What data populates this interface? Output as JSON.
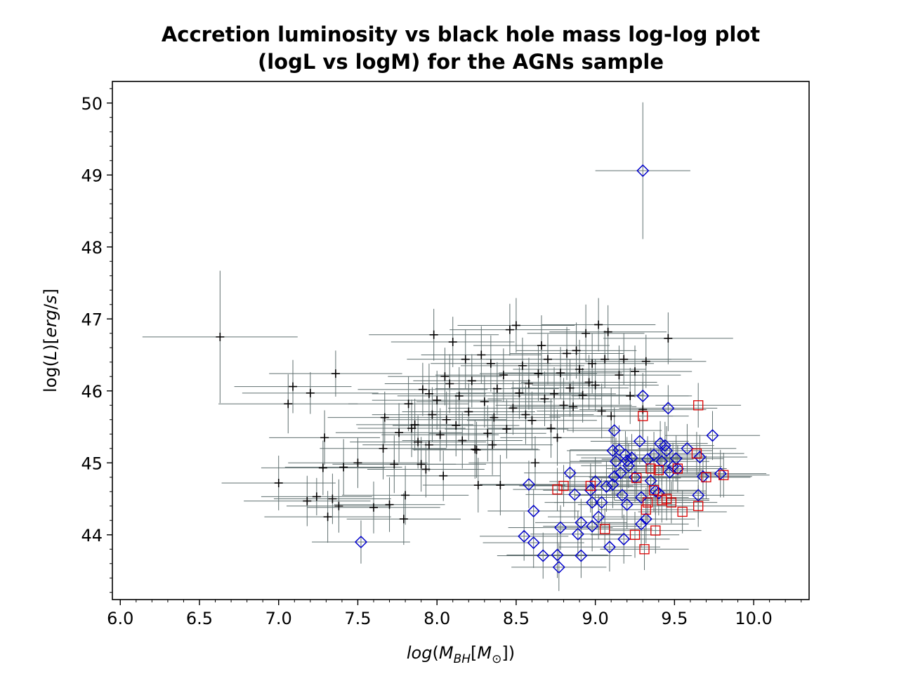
{
  "chart_data": {
    "type": "scatter",
    "title": [
      "Accretion luminosity vs black hole mass log-log plot",
      "(logL vs logM) for the AGNs sample"
    ],
    "xlabel": "log(M_BH[M_⊙])",
    "ylabel": "log(L)[erg/s]",
    "xlim": [
      5.95,
      10.35
    ],
    "ylim": [
      43.1,
      50.3
    ],
    "x_ticks": [
      "6.0",
      "6.5",
      "7.0",
      "7.5",
      "8.0",
      "8.5",
      "9.0",
      "9.5",
      "10.0"
    ],
    "y_ticks": [
      "44",
      "45",
      "46",
      "47",
      "48",
      "49",
      "50"
    ],
    "grid": false,
    "legend": "none",
    "colors": {
      "plus": "#000000",
      "errorbar": "#5f6f6f",
      "diamond": "#0000cc",
      "square": "#dd0000"
    },
    "series": [
      {
        "marker": "plus",
        "points": [
          [
            6.63,
            46.75,
            0.49,
            0.92
          ],
          [
            7.0,
            44.72,
            0.36,
            0.38
          ],
          [
            7.06,
            45.82,
            0.44,
            0.41
          ],
          [
            7.09,
            46.06,
            0.37,
            0.37
          ],
          [
            7.18,
            44.47,
            0.4,
            0.35
          ],
          [
            7.2,
            45.97,
            0.43,
            0.29
          ],
          [
            7.24,
            44.53,
            0.35,
            0.26
          ],
          [
            7.28,
            44.93,
            0.39,
            0.38
          ],
          [
            7.29,
            45.35,
            0.35,
            0.38
          ],
          [
            7.31,
            44.25,
            0.4,
            0.36
          ],
          [
            7.34,
            44.5,
            0.37,
            0.35
          ],
          [
            7.36,
            46.24,
            0.42,
            0.32
          ],
          [
            7.38,
            44.4,
            0.33,
            0.37
          ],
          [
            7.41,
            44.94,
            0.37,
            0.39
          ],
          [
            7.5,
            45.0,
            0.44,
            0.35
          ],
          [
            7.6,
            44.38,
            0.42,
            0.36
          ],
          [
            7.66,
            45.2,
            0.4,
            0.43
          ],
          [
            7.67,
            45.63,
            0.36,
            0.36
          ],
          [
            7.7,
            44.42,
            0.35,
            0.38
          ],
          [
            7.73,
            44.98,
            0.39,
            0.4
          ],
          [
            7.76,
            45.42,
            0.4,
            0.41
          ],
          [
            7.79,
            44.22,
            0.36,
            0.36
          ],
          [
            7.8,
            44.55,
            0.4,
            0.41
          ],
          [
            7.82,
            45.82,
            0.38,
            0.38
          ],
          [
            7.84,
            45.48,
            0.34,
            0.4
          ],
          [
            7.86,
            45.53,
            0.37,
            0.36
          ],
          [
            7.88,
            45.29,
            0.43,
            0.37
          ],
          [
            7.9,
            44.98,
            0.41,
            0.38
          ],
          [
            7.91,
            46.02,
            0.41,
            0.37
          ],
          [
            7.93,
            44.91,
            0.37,
            0.39
          ],
          [
            7.95,
            45.96,
            0.36,
            0.42
          ],
          [
            7.97,
            45.67,
            0.38,
            0.38
          ],
          [
            7.98,
            46.78,
            0.41,
            0.36
          ],
          [
            8.0,
            45.87,
            0.41,
            0.41
          ],
          [
            8.02,
            45.39,
            0.37,
            0.37
          ],
          [
            8.04,
            44.82,
            0.36,
            0.35
          ],
          [
            8.06,
            45.6,
            0.38,
            0.39
          ],
          [
            8.08,
            46.1,
            0.41,
            0.41
          ],
          [
            8.1,
            46.68,
            0.39,
            0.35
          ],
          [
            8.12,
            45.52,
            0.4,
            0.43
          ],
          [
            8.14,
            45.93,
            0.39,
            0.4
          ],
          [
            8.16,
            45.31,
            0.38,
            0.39
          ],
          [
            8.18,
            46.44,
            0.37,
            0.41
          ],
          [
            8.2,
            45.71,
            0.42,
            0.4
          ],
          [
            8.22,
            46.14,
            0.37,
            0.37
          ],
          [
            8.24,
            45.19,
            0.4,
            0.41
          ],
          [
            8.26,
            44.69,
            0.35,
            0.38
          ],
          [
            8.28,
            46.5,
            0.38,
            0.4
          ],
          [
            8.3,
            45.85,
            0.43,
            0.36
          ],
          [
            8.32,
            45.41,
            0.37,
            0.39
          ],
          [
            8.34,
            46.38,
            0.38,
            0.39
          ],
          [
            8.36,
            45.63,
            0.42,
            0.42
          ],
          [
            8.38,
            46.03,
            0.39,
            0.37
          ],
          [
            8.4,
            44.69,
            0.41,
            0.42
          ],
          [
            8.42,
            46.22,
            0.43,
            0.37
          ],
          [
            8.44,
            45.47,
            0.39,
            0.41
          ],
          [
            8.46,
            46.85,
            0.38,
            0.36
          ],
          [
            8.48,
            45.76,
            0.41,
            0.37
          ],
          [
            8.5,
            46.91,
            0.37,
            0.38
          ],
          [
            8.52,
            45.97,
            0.4,
            0.36
          ],
          [
            8.54,
            46.35,
            0.39,
            0.39
          ],
          [
            8.56,
            45.67,
            0.43,
            0.41
          ],
          [
            8.58,
            46.1,
            0.39,
            0.36
          ],
          [
            8.6,
            45.59,
            0.41,
            0.4
          ],
          [
            8.62,
            45.0,
            0.42,
            0.37
          ],
          [
            8.64,
            46.24,
            0.37,
            0.38
          ],
          [
            8.66,
            46.63,
            0.43,
            0.42
          ],
          [
            8.68,
            45.89,
            0.36,
            0.38
          ],
          [
            8.7,
            46.44,
            0.39,
            0.35
          ],
          [
            8.72,
            45.48,
            0.4,
            0.41
          ],
          [
            8.74,
            45.96,
            0.39,
            0.37
          ],
          [
            8.76,
            45.35,
            0.36,
            0.39
          ],
          [
            8.78,
            46.25,
            0.39,
            0.36
          ],
          [
            8.8,
            45.8,
            0.43,
            0.38
          ],
          [
            8.82,
            46.52,
            0.36,
            0.37
          ],
          [
            8.84,
            46.04,
            0.37,
            0.4
          ],
          [
            8.86,
            45.78,
            0.4,
            0.36
          ],
          [
            8.88,
            46.56,
            0.38,
            0.39
          ],
          [
            8.9,
            46.3,
            0.42,
            0.41
          ],
          [
            8.92,
            45.94,
            0.39,
            0.38
          ],
          [
            8.94,
            46.8,
            0.37,
            0.4
          ],
          [
            8.96,
            46.12,
            0.43,
            0.38
          ],
          [
            8.98,
            46.38,
            0.39,
            0.42
          ],
          [
            9.0,
            46.08,
            0.4,
            0.36
          ],
          [
            9.02,
            46.92,
            0.36,
            0.37
          ],
          [
            9.04,
            45.72,
            0.41,
            0.38
          ],
          [
            9.06,
            46.44,
            0.42,
            0.4
          ],
          [
            9.08,
            46.82,
            0.37,
            0.37
          ],
          [
            9.1,
            45.65,
            0.39,
            0.39
          ],
          [
            9.15,
            46.22,
            0.39,
            0.41
          ],
          [
            9.18,
            46.44,
            0.43,
            0.36
          ],
          [
            9.22,
            45.93,
            0.37,
            0.39
          ],
          [
            9.25,
            46.27,
            0.36,
            0.36
          ],
          [
            9.3,
            45.74,
            0.4,
            0.38
          ],
          [
            9.32,
            46.41,
            0.38,
            0.37
          ],
          [
            9.46,
            46.73,
            0.41,
            0.36
          ],
          [
            8.25,
            45.18,
            0.4,
            0.39
          ],
          [
            8.35,
            45.25,
            0.38,
            0.42
          ],
          [
            7.95,
            45.25,
            0.42,
            0.37
          ],
          [
            8.05,
            46.2,
            0.36,
            0.4
          ]
        ]
      },
      {
        "marker": "diamond",
        "points": [
          [
            7.52,
            43.9,
            0.31,
            0.3
          ],
          [
            9.3,
            49.06,
            0.3,
            0.95
          ],
          [
            8.55,
            43.98,
            0.28,
            0.34
          ],
          [
            8.58,
            44.7,
            0.31,
            0.33
          ],
          [
            8.61,
            44.33,
            0.29,
            0.31
          ],
          [
            8.61,
            43.89,
            0.32,
            0.35
          ],
          [
            8.67,
            43.71,
            0.29,
            0.32
          ],
          [
            8.76,
            43.72,
            0.32,
            0.32
          ],
          [
            8.77,
            43.55,
            0.3,
            0.33
          ],
          [
            8.78,
            44.1,
            0.33,
            0.31
          ],
          [
            8.84,
            44.86,
            0.29,
            0.32
          ],
          [
            8.87,
            44.56,
            0.31,
            0.35
          ],
          [
            8.89,
            44.01,
            0.3,
            0.32
          ],
          [
            8.91,
            44.17,
            0.29,
            0.33
          ],
          [
            8.91,
            43.71,
            0.32,
            0.31
          ],
          [
            8.97,
            44.62,
            0.3,
            0.31
          ],
          [
            8.98,
            44.12,
            0.31,
            0.35
          ],
          [
            9.0,
            44.74,
            0.29,
            0.34
          ],
          [
            9.02,
            44.25,
            0.32,
            0.31
          ],
          [
            9.04,
            44.45,
            0.3,
            0.33
          ],
          [
            9.07,
            44.67,
            0.29,
            0.35
          ],
          [
            9.09,
            43.83,
            0.32,
            0.34
          ],
          [
            9.11,
            45.17,
            0.29,
            0.31
          ],
          [
            9.12,
            44.81,
            0.31,
            0.33
          ],
          [
            9.12,
            45.45,
            0.3,
            0.32
          ],
          [
            9.13,
            45.02,
            0.29,
            0.33
          ],
          [
            9.15,
            45.18,
            0.31,
            0.34
          ],
          [
            9.16,
            44.86,
            0.32,
            0.33
          ],
          [
            9.17,
            44.55,
            0.3,
            0.32
          ],
          [
            9.18,
            43.94,
            0.29,
            0.34
          ],
          [
            9.19,
            45.11,
            0.31,
            0.33
          ],
          [
            9.2,
            45.03,
            0.3,
            0.33
          ],
          [
            9.21,
            44.96,
            0.3,
            0.31
          ],
          [
            9.23,
            45.07,
            0.32,
            0.33
          ],
          [
            9.25,
            44.8,
            0.29,
            0.35
          ],
          [
            9.28,
            45.3,
            0.31,
            0.32
          ],
          [
            9.29,
            44.15,
            0.3,
            0.33
          ],
          [
            9.29,
            44.52,
            0.3,
            0.31
          ],
          [
            9.3,
            45.93,
            0.31,
            0.32
          ],
          [
            9.32,
            44.22,
            0.31,
            0.34
          ],
          [
            9.33,
            45.05,
            0.29,
            0.32
          ],
          [
            9.35,
            44.75,
            0.3,
            0.34
          ],
          [
            9.37,
            45.11,
            0.29,
            0.32
          ],
          [
            9.38,
            44.61,
            0.32,
            0.33
          ],
          [
            9.4,
            44.58,
            0.3,
            0.31
          ],
          [
            9.42,
            45.02,
            0.3,
            0.33
          ],
          [
            9.44,
            45.24,
            0.31,
            0.33
          ],
          [
            9.45,
            45.17,
            0.29,
            0.34
          ],
          [
            9.46,
            45.76,
            0.31,
            0.32
          ],
          [
            9.47,
            44.87,
            0.3,
            0.33
          ],
          [
            9.49,
            44.95,
            0.31,
            0.33
          ],
          [
            9.51,
            45.06,
            0.3,
            0.32
          ],
          [
            9.58,
            45.2,
            0.31,
            0.34
          ],
          [
            9.65,
            44.55,
            0.29,
            0.33
          ],
          [
            9.66,
            45.08,
            0.3,
            0.31
          ],
          [
            9.68,
            44.81,
            0.31,
            0.32
          ],
          [
            9.74,
            45.38,
            0.3,
            0.34
          ],
          [
            9.79,
            44.85,
            0.29,
            0.33
          ],
          [
            8.98,
            44.45,
            0.3,
            0.32
          ],
          [
            9.2,
            44.42,
            0.31,
            0.34
          ],
          [
            9.41,
            45.27,
            0.3,
            0.31
          ],
          [
            9.52,
            44.92,
            0.31,
            0.33
          ],
          [
            9.11,
            44.7,
            0.29,
            0.33
          ]
        ]
      },
      {
        "marker": "square",
        "points": [
          [
            8.76,
            44.63,
            0.28,
            0.3
          ],
          [
            8.8,
            44.68,
            0.28,
            0.29
          ],
          [
            8.97,
            44.68,
            0.27,
            0.31
          ],
          [
            9.06,
            44.08,
            0.3,
            0.29
          ],
          [
            9.25,
            44.0,
            0.28,
            0.32
          ],
          [
            9.3,
            45.65,
            0.29,
            0.31
          ],
          [
            9.31,
            43.8,
            0.28,
            0.29
          ],
          [
            9.32,
            44.35,
            0.3,
            0.3
          ],
          [
            9.33,
            44.45,
            0.27,
            0.31
          ],
          [
            9.35,
            44.92,
            0.28,
            0.29
          ],
          [
            9.37,
            44.62,
            0.29,
            0.3
          ],
          [
            9.38,
            44.06,
            0.29,
            0.32
          ],
          [
            9.4,
            44.9,
            0.28,
            0.29
          ],
          [
            9.42,
            44.48,
            0.3,
            0.31
          ],
          [
            9.45,
            44.5,
            0.27,
            0.3
          ],
          [
            9.48,
            44.45,
            0.29,
            0.29
          ],
          [
            9.52,
            44.92,
            0.28,
            0.31
          ],
          [
            9.55,
            44.32,
            0.28,
            0.3
          ],
          [
            9.64,
            45.13,
            0.3,
            0.3
          ],
          [
            9.65,
            44.4,
            0.29,
            0.29
          ],
          [
            9.65,
            45.8,
            0.27,
            0.31
          ],
          [
            9.7,
            44.8,
            0.28,
            0.3
          ],
          [
            9.81,
            44.83,
            0.29,
            0.31
          ],
          [
            9.26,
            44.79,
            0.28,
            0.3
          ]
        ]
      }
    ]
  }
}
